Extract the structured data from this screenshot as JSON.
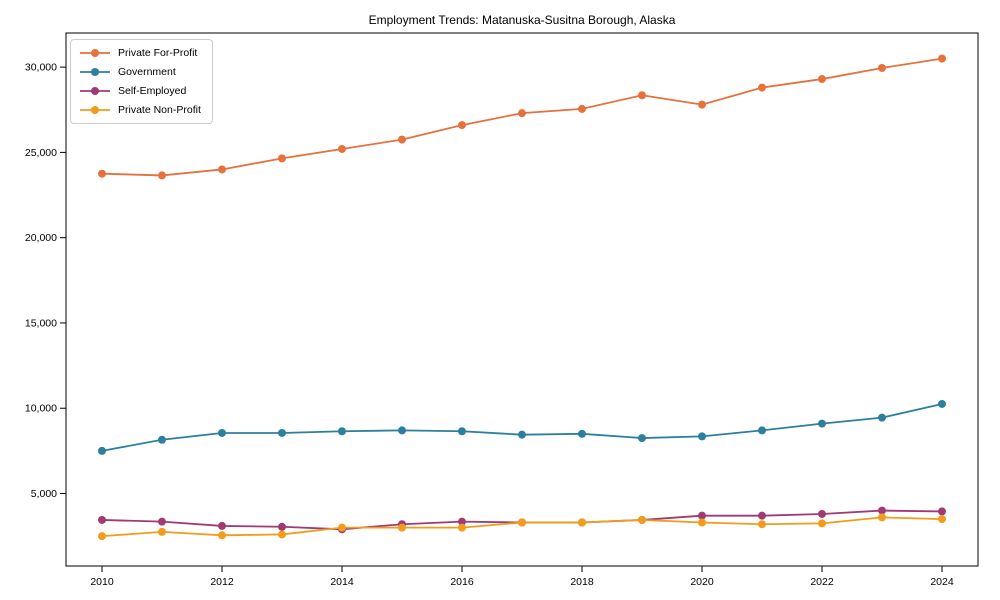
{
  "figure": {
    "background": "#ffffff",
    "frame_color": "#000000"
  },
  "chart_data": {
    "type": "line",
    "title": "Employment Trends: Matanuska-Susitna Borough, Alaska",
    "xlabel": "",
    "ylabel": "",
    "x": [
      2010,
      2011,
      2012,
      2013,
      2014,
      2015,
      2016,
      2017,
      2018,
      2019,
      2020,
      2021,
      2022,
      2023,
      2024
    ],
    "series": [
      {
        "name": "Private For-Profit",
        "color": "#e5713d",
        "values": [
          23750,
          23650,
          24000,
          24650,
          25200,
          25750,
          26600,
          27300,
          27550,
          28350,
          27800,
          28800,
          29300,
          29950,
          30500
        ]
      },
      {
        "name": "Government",
        "color": "#2d7f9e",
        "values": [
          7500,
          8150,
          8550,
          8550,
          8650,
          8700,
          8650,
          8450,
          8500,
          8250,
          8350,
          8700,
          9100,
          9450,
          10250
        ]
      },
      {
        "name": "Self-Employed",
        "color": "#a03a75",
        "values": [
          3450,
          3350,
          3100,
          3050,
          2900,
          3200,
          3350,
          3300,
          3300,
          3450,
          3700,
          3700,
          3800,
          4000,
          3950
        ]
      },
      {
        "name": "Private Non-Profit",
        "color": "#f29c1b",
        "values": [
          2500,
          2750,
          2550,
          2600,
          3000,
          3000,
          3000,
          3300,
          3300,
          3450,
          3300,
          3200,
          3250,
          3600,
          3500
        ]
      }
    ],
    "xticks": [
      2010,
      2012,
      2014,
      2016,
      2018,
      2020,
      2022,
      2024
    ],
    "xtick_labels": [
      "2010",
      "2012",
      "2014",
      "2016",
      "2018",
      "2020",
      "2022",
      "2024"
    ],
    "yticks": [
      5000,
      10000,
      15000,
      20000,
      25000,
      30000
    ],
    "ytick_labels": [
      "5,000",
      "10,000",
      "15,000",
      "20,000",
      "25,000",
      "30,000"
    ],
    "xlim": [
      2009.4,
      2024.6
    ],
    "ylim": [
      750,
      32000
    ],
    "grid": false,
    "legend_position": "upper-left",
    "marker": "circle"
  }
}
